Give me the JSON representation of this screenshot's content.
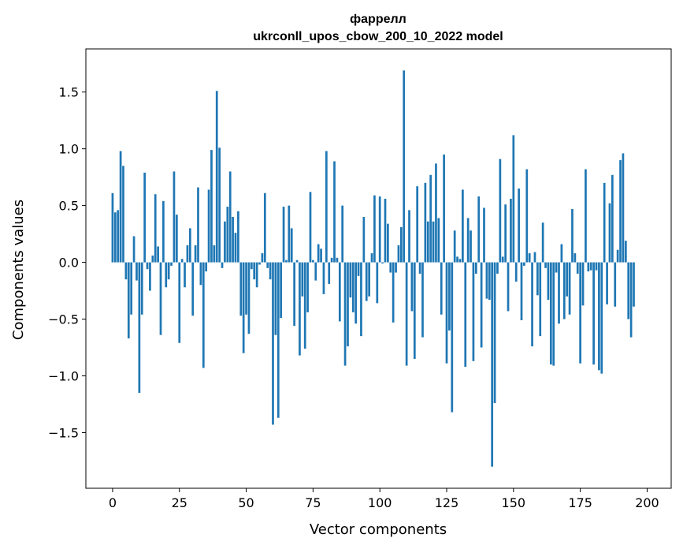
{
  "chart_data": {
    "type": "bar",
    "title_line1": "фаррелл",
    "title_line2": "ukrconll_upos_cbow_200_10_2022 model",
    "xlabel": "Vector components",
    "ylabel": "Components values",
    "xlim": [
      -10,
      209
    ],
    "ylim": [
      -1.99,
      1.88
    ],
    "xticks": [
      0,
      25,
      50,
      75,
      100,
      125,
      150,
      175,
      200
    ],
    "yticks": [
      -1.5,
      -1.0,
      -0.5,
      0.0,
      0.5,
      1.0,
      1.5
    ],
    "ytick_labels": [
      "−1.5",
      "−1.0",
      "−0.5",
      "0.0",
      "0.5",
      "1.0",
      "1.5"
    ],
    "bar_color": "#1f77b4",
    "values": [
      0.61,
      0.44,
      0.46,
      0.98,
      0.85,
      -0.15,
      -0.67,
      -0.46,
      0.23,
      -0.16,
      -1.15,
      -0.46,
      0.79,
      -0.06,
      -0.25,
      0.06,
      0.6,
      0.14,
      -0.64,
      0.54,
      -0.22,
      -0.15,
      -0.03,
      0.8,
      0.42,
      -0.71,
      0.03,
      -0.22,
      0.15,
      0.3,
      -0.47,
      0.15,
      0.66,
      -0.2,
      -0.93,
      -0.08,
      0.64,
      0.99,
      0.15,
      1.51,
      1.01,
      -0.05,
      0.36,
      0.49,
      0.8,
      0.4,
      0.26,
      0.45,
      -0.47,
      -0.8,
      -0.46,
      -0.63,
      -0.06,
      -0.15,
      -0.22,
      -0.02,
      0.08,
      0.61,
      -0.05,
      -0.15,
      -1.43,
      -0.64,
      -1.37,
      -0.49,
      0.49,
      0.02,
      0.5,
      0.3,
      -0.56,
      0.02,
      -0.82,
      -0.3,
      -0.76,
      -0.44,
      0.62,
      0.02,
      -0.16,
      0.16,
      0.12,
      -0.28,
      0.98,
      -0.19,
      0.04,
      0.89,
      0.04,
      -0.52,
      0.5,
      -0.91,
      -0.74,
      -0.31,
      -0.44,
      -0.54,
      -0.12,
      -0.65,
      0.4,
      -0.34,
      -0.3,
      0.08,
      0.59,
      -0.36,
      0.58,
      -0.01,
      0.56,
      0.34,
      -0.09,
      -0.53,
      -0.09,
      0.15,
      0.31,
      1.69,
      -0.91,
      0.46,
      -0.43,
      -0.85,
      0.67,
      -0.1,
      -0.66,
      0.7,
      0.36,
      0.77,
      0.36,
      0.87,
      0.39,
      -0.46,
      0.95,
      -0.89,
      -0.6,
      -1.32,
      0.28,
      0.05,
      0.03,
      0.64,
      -0.92,
      0.39,
      0.28,
      -0.87,
      -0.1,
      0.58,
      -0.75,
      0.48,
      -0.32,
      -0.33,
      -1.8,
      -1.24,
      -0.1,
      0.91,
      0.05,
      0.51,
      -0.43,
      0.56,
      1.12,
      -0.17,
      0.65,
      -0.51,
      -0.03,
      0.82,
      0.08,
      -0.74,
      0.09,
      -0.29,
      -0.65,
      0.35,
      -0.05,
      -0.33,
      -0.9,
      -0.91,
      -0.09,
      -0.54,
      0.16,
      -0.5,
      -0.3,
      -0.46,
      0.47,
      0.08,
      -0.1,
      -0.89,
      -0.38,
      0.82,
      -0.08,
      -0.07,
      -0.9,
      -0.07,
      -0.95,
      -0.98,
      0.7,
      -0.37,
      0.52,
      0.77,
      -0.39,
      0.11,
      0.9,
      0.96,
      0.19,
      -0.5,
      -0.66,
      -0.39
    ]
  }
}
